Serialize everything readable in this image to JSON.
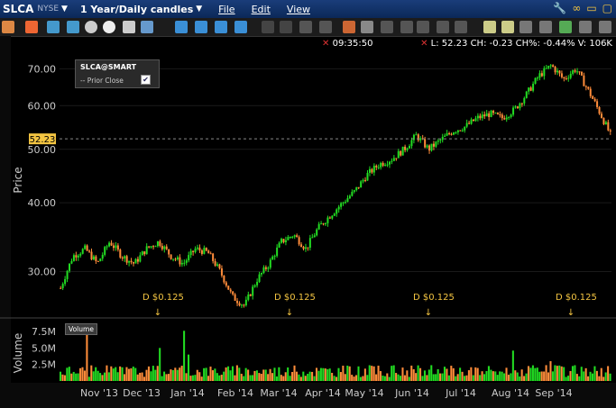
{
  "header": {
    "symbol": "SLCA",
    "exchange": "NYSE",
    "period": "1 Year/Daily candles",
    "menu": [
      "File",
      "Edit",
      "View"
    ]
  },
  "quote": {
    "time": "09:35:50",
    "text": "L: 52.23 CH: -0.23 CH%: -0.44% V: 106K"
  },
  "legend": {
    "title": "SLCA@SMART",
    "prior_close_label": "Prior Close",
    "checked": true
  },
  "volume_label": "Volume",
  "colors": {
    "up": "#22dd22",
    "down": "#ff8c3a",
    "accent": "#f4c542",
    "bg": "#000000"
  },
  "dividends": [
    {
      "label": "D $0.125",
      "month": "Nov '13"
    },
    {
      "label": "D $0.125",
      "month": "Feb '14"
    },
    {
      "label": "D $0.125",
      "month": "May '14"
    },
    {
      "label": "D $0.125",
      "month": "Aug '14"
    }
  ],
  "chart_data": {
    "type": "candlestick",
    "ylabel": "Price",
    "y_ticks": [
      "30.00",
      "40.00",
      "50.00",
      "60.00",
      "70.00"
    ],
    "price_ylim": [
      25,
      75
    ],
    "last_price": "52.23",
    "x_ticks": [
      "Nov '13",
      "Dec '13",
      "Jan '14",
      "Feb '14",
      "Mar '14",
      "Apr '14",
      "May '14",
      "Jun '14",
      "Jul '14",
      "Aug '14",
      "Sep '14"
    ],
    "price_path": [
      [
        0,
        28
      ],
      [
        5,
        32
      ],
      [
        10,
        33
      ],
      [
        15,
        31
      ],
      [
        20,
        34
      ],
      [
        25,
        32
      ],
      [
        30,
        31
      ],
      [
        35,
        33
      ],
      [
        40,
        34
      ],
      [
        45,
        32
      ],
      [
        50,
        31
      ],
      [
        55,
        33
      ],
      [
        60,
        32.5
      ],
      [
        65,
        30
      ],
      [
        70,
        27
      ],
      [
        75,
        26
      ],
      [
        80,
        29
      ],
      [
        85,
        31
      ],
      [
        90,
        34
      ],
      [
        95,
        35
      ],
      [
        100,
        33
      ],
      [
        105,
        36
      ],
      [
        110,
        38
      ],
      [
        115,
        40
      ],
      [
        120,
        42
      ],
      [
        125,
        45
      ],
      [
        130,
        47
      ],
      [
        135,
        48
      ],
      [
        140,
        50
      ],
      [
        145,
        53
      ],
      [
        150,
        50
      ],
      [
        155,
        52
      ],
      [
        160,
        54
      ],
      [
        165,
        55
      ],
      [
        170,
        57
      ],
      [
        175,
        58
      ],
      [
        180,
        57
      ],
      [
        185,
        59
      ],
      [
        190,
        63
      ],
      [
        195,
        68
      ],
      [
        200,
        71
      ],
      [
        205,
        67
      ],
      [
        210,
        70
      ],
      [
        215,
        64
      ],
      [
        220,
        58
      ],
      [
        225,
        52
      ]
    ],
    "volume": {
      "ylabel": "Volume",
      "y_ticks": [
        "2.5M",
        "5.0M",
        "7.5M"
      ],
      "ylim": [
        0,
        9
      ],
      "spikes": [
        [
          12,
          8.1
        ],
        [
          45,
          5.0
        ],
        [
          56,
          7.6
        ],
        [
          58,
          4.0
        ],
        [
          150,
          2.3
        ],
        [
          205,
          4.6
        ],
        [
          222,
          3.0
        ]
      ]
    }
  }
}
